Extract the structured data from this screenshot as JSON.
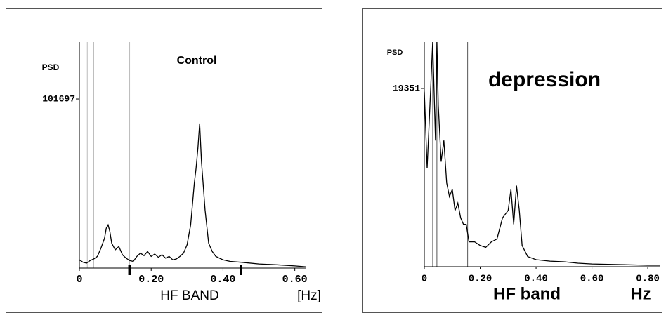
{
  "chart_data": [
    {
      "type": "line",
      "title": "Control",
      "ylabel": "PSD",
      "xlabel": "HF BAND",
      "xunit": "[Hz]",
      "xlim": [
        0,
        0.63
      ],
      "ylim": [
        0,
        135900
      ],
      "xticks": [
        0,
        {
          "value": 0.2,
          "label": "0.20"
        },
        {
          "value": 0.4,
          "label": "0.40"
        },
        {
          "value": 0.6,
          "label": "0.60"
        }
      ],
      "yticks": [
        101697
      ],
      "vlines": [
        0.022,
        0.04,
        0.14
      ],
      "band_marks": [
        0.14,
        0.45
      ],
      "series": [
        {
          "color": "#000000",
          "x": [
            0,
            0.01,
            0.02,
            0.03,
            0.04,
            0.05,
            0.06,
            0.07,
            0.075,
            0.08,
            0.085,
            0.09,
            0.1,
            0.11,
            0.12,
            0.13,
            0.14,
            0.15,
            0.16,
            0.17,
            0.18,
            0.19,
            0.2,
            0.21,
            0.22,
            0.23,
            0.24,
            0.25,
            0.26,
            0.27,
            0.28,
            0.29,
            0.3,
            0.31,
            0.32,
            0.325,
            0.33,
            0.335,
            0.34,
            0.345,
            0.35,
            0.36,
            0.37,
            0.38,
            0.4,
            0.42,
            0.45,
            0.5,
            0.55,
            0.6,
            0.63
          ],
          "values": [
            5000,
            3500,
            3000,
            4500,
            5500,
            7000,
            12000,
            18000,
            24000,
            26000,
            22000,
            15000,
            11000,
            13000,
            8000,
            6000,
            4500,
            4000,
            7000,
            9000,
            7500,
            10000,
            7000,
            8500,
            6500,
            8000,
            6000,
            7000,
            5000,
            5500,
            7000,
            9000,
            14000,
            26000,
            51000,
            60000,
            72000,
            87000,
            64000,
            50000,
            35000,
            15000,
            10000,
            7000,
            5000,
            4000,
            3500,
            2500,
            2000,
            1300,
            800
          ]
        }
      ]
    },
    {
      "type": "line",
      "title": "depression",
      "ylabel": "PSD",
      "xlabel": "HF band",
      "xunit": "Hz",
      "xlim": [
        0,
        0.845
      ],
      "ylim": [
        0,
        24380
      ],
      "xticks": [
        0,
        {
          "value": 0.2,
          "label": "0.20"
        },
        {
          "value": 0.4,
          "label": "0.40"
        },
        {
          "value": 0.6,
          "label": "0.60"
        },
        {
          "value": 0.8,
          "label": "0.80"
        }
      ],
      "yticks": [
        19351
      ],
      "vlines": [
        0.03,
        0.045,
        0.155
      ],
      "series": [
        {
          "color": "#000000",
          "x": [
            0,
            0.01,
            0.02,
            0.03,
            0.04,
            0.045,
            0.05,
            0.06,
            0.07,
            0.08,
            0.09,
            0.1,
            0.11,
            0.12,
            0.13,
            0.14,
            0.15,
            0.16,
            0.18,
            0.2,
            0.22,
            0.24,
            0.26,
            0.28,
            0.3,
            0.31,
            0.32,
            0.33,
            0.34,
            0.35,
            0.37,
            0.4,
            0.45,
            0.5,
            0.55,
            0.6,
            0.7,
            0.8,
            0.845
          ],
          "values": [
            19000,
            10700,
            17500,
            24380,
            13700,
            24380,
            17500,
            11400,
            13700,
            9100,
            7600,
            8400,
            6100,
            6900,
            5300,
            4600,
            4600,
            2700,
            2700,
            2300,
            2100,
            2700,
            3000,
            5300,
            6100,
            8400,
            4600,
            8800,
            6100,
            2300,
            1100,
            760,
            600,
            530,
            380,
            300,
            230,
            150,
            150
          ]
        }
      ]
    }
  ]
}
